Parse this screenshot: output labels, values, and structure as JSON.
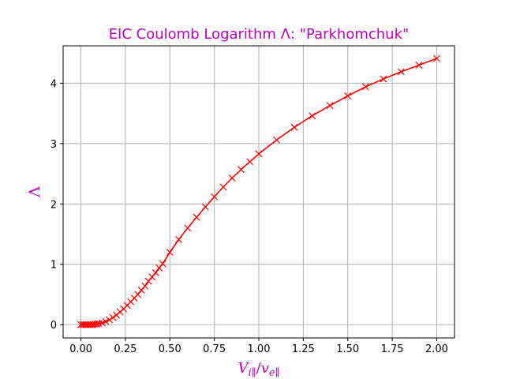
{
  "chart_data": {
    "type": "line",
    "title": "EIC Coulomb Logarithm Λ: \"Parkhomchuk\"",
    "xlabel": "V_{i∥}/v_{e∥}",
    "ylabel": "Λ",
    "xlim": [
      -0.1,
      2.1
    ],
    "ylim": [
      -0.22,
      4.62
    ],
    "xticks": [
      "0.00",
      "0.25",
      "0.50",
      "0.75",
      "1.00",
      "1.25",
      "1.50",
      "1.75",
      "2.00"
    ],
    "yticks": [
      "0",
      "1",
      "2",
      "3",
      "4"
    ],
    "grid": true,
    "legend": false,
    "series": [
      {
        "color": "#ff0000",
        "marker": "x",
        "x": [
          0.0,
          0.01,
          0.02,
          0.03,
          0.04,
          0.05,
          0.06,
          0.07,
          0.08,
          0.09,
          0.1,
          0.12,
          0.14,
          0.16,
          0.18,
          0.2,
          0.22,
          0.24,
          0.26,
          0.28,
          0.3,
          0.32,
          0.34,
          0.36,
          0.38,
          0.4,
          0.42,
          0.44,
          0.46,
          0.5,
          0.55,
          0.6,
          0.65,
          0.7,
          0.75,
          0.8,
          0.85,
          0.9,
          0.95,
          1.0,
          1.1,
          1.2,
          1.3,
          1.4,
          1.5,
          1.6,
          1.7,
          1.8,
          1.9,
          2.0
        ],
        "y": [
          0.0,
          0.0,
          0.0,
          0.0,
          0.0,
          0.0,
          0.0,
          0.0,
          0.01,
          0.01,
          0.02,
          0.03,
          0.05,
          0.08,
          0.12,
          0.16,
          0.21,
          0.26,
          0.32,
          0.38,
          0.44,
          0.5,
          0.57,
          0.64,
          0.72,
          0.79,
          0.86,
          0.94,
          1.01,
          1.2,
          1.41,
          1.6,
          1.78,
          1.95,
          2.12,
          2.28,
          2.43,
          2.57,
          2.7,
          2.83,
          3.06,
          3.27,
          3.46,
          3.63,
          3.79,
          3.94,
          4.07,
          4.19,
          4.3,
          4.41
        ]
      }
    ]
  }
}
